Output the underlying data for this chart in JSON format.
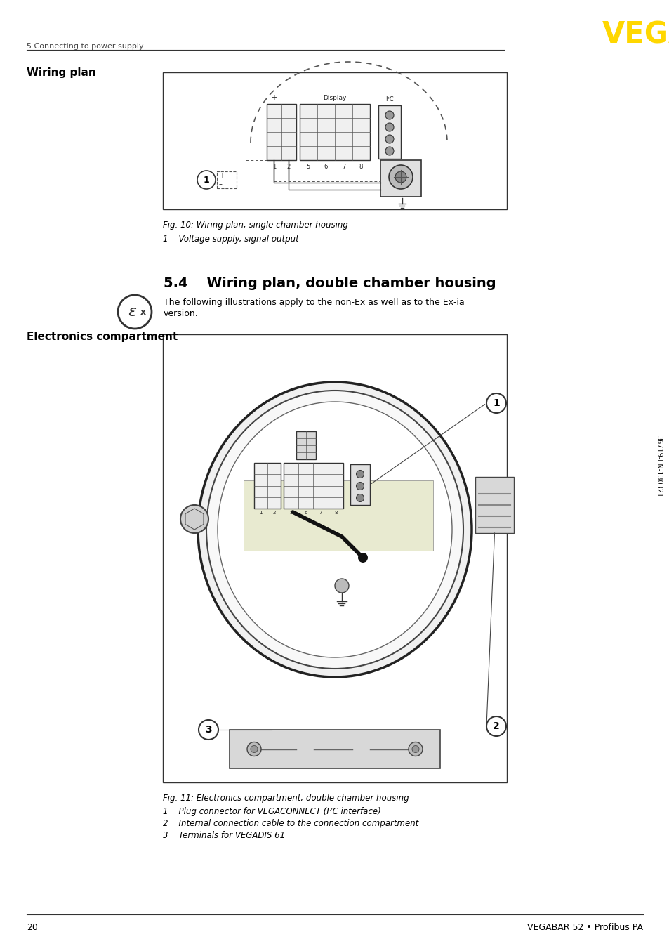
{
  "page_number": "20",
  "footer_text": "VEGABAR 52 • Profibus PA",
  "header_section": "5 Connecting to power supply",
  "logo_text": "VEGA",
  "logo_color": "#FFD700",
  "section_title": "5.4    Wiring plan, double chamber housing",
  "section_intro_1": "The following illustrations apply to the non-Ex as well as to the Ex-ia",
  "section_intro_2": "version.",
  "left_label_1": "Wiring plan",
  "left_label_2": "Electronics compartment",
  "fig10_caption": "Fig. 10: Wiring plan, single chamber housing",
  "fig10_note": "1    Voltage supply, signal output",
  "fig11_caption": "Fig. 11: Electronics compartment, double chamber housing",
  "fig11_notes": [
    "1    Plug connector for VEGACONNECT (I²C interface)",
    "2    Internal connection cable to the connection compartment",
    "3    Terminals for VEGADIS 61"
  ],
  "doc_number": "36719-EN-130321",
  "bg_color": "#FFFFFF",
  "text_color": "#000000"
}
